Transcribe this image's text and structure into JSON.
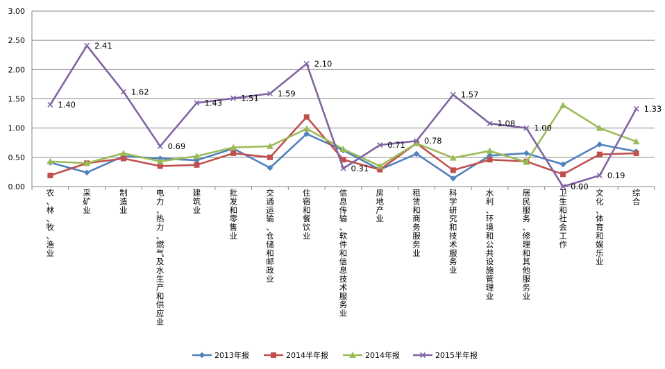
{
  "chart_data": {
    "type": "line",
    "title": "",
    "xlabel": "",
    "ylabel": "",
    "ylim": [
      0,
      3
    ],
    "yticks": [
      "0.00",
      "0.50",
      "1.00",
      "1.50",
      "2.00",
      "2.50",
      "3.00"
    ],
    "grid": "horizontal",
    "legend": "bottom",
    "categories": [
      "农、林、牧、渔业",
      "采矿业",
      "制造业",
      "电力、热力、燃气及水生产和供应业",
      "建筑业",
      "批发和零售业",
      "交通运输、仓储和邮政业",
      "住宿和餐饮业",
      "信息传输、软件和信息技术服务业",
      "房地产业",
      "租赁和商务服务业",
      "科学研究和技术服务业",
      "水利、环境和公共设施管理业",
      "居民服务、修理和其他服务业",
      "卫生和社会工作",
      "文化、体育和娱乐业",
      "综合"
    ],
    "series": [
      {
        "name": "2013年报",
        "color": "#4f81bd",
        "marker": "diamond",
        "values": [
          0.41,
          0.24,
          0.52,
          0.48,
          0.45,
          0.65,
          0.32,
          0.9,
          0.62,
          0.29,
          0.56,
          0.14,
          0.53,
          0.57,
          0.38,
          0.72,
          0.6
        ]
      },
      {
        "name": "2014半年报",
        "color": "#c0504d",
        "marker": "square",
        "values": [
          0.19,
          0.4,
          0.48,
          0.35,
          0.37,
          0.57,
          0.5,
          1.19,
          0.46,
          0.29,
          0.74,
          0.28,
          0.46,
          0.43,
          0.21,
          0.55,
          0.57
        ]
      },
      {
        "name": "2014年报",
        "color": "#9bbb59",
        "marker": "triangle",
        "values": [
          0.43,
          0.4,
          0.57,
          0.43,
          0.52,
          0.67,
          0.69,
          0.99,
          0.64,
          0.35,
          0.74,
          0.49,
          0.61,
          0.42,
          1.39,
          1.0,
          0.77
        ]
      },
      {
        "name": "2015半年报",
        "color": "#8064a2",
        "marker": "x",
        "values": [
          1.4,
          2.41,
          1.62,
          0.69,
          1.43,
          1.51,
          1.59,
          2.1,
          0.31,
          0.71,
          0.78,
          1.57,
          1.08,
          1.0,
          0.0,
          0.19,
          1.33
        ],
        "labels": [
          "1.40",
          "2.41",
          "1.62",
          "0.69",
          "1.43",
          "1.51",
          "1.59",
          "2.10",
          "0.31",
          "0.71",
          "0.78",
          "1.57",
          "1.08",
          "1.00",
          "0.00",
          "0.19",
          "1.33"
        ]
      }
    ]
  }
}
